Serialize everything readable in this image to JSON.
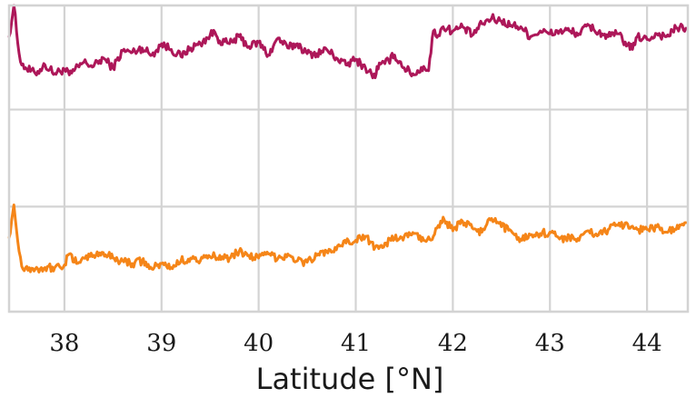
{
  "chart_data": {
    "type": "line",
    "title": "",
    "xlabel": "Latitude [°N]",
    "ylabel": "",
    "xlim": [
      37.43,
      44.42
    ],
    "ylim": [
      0,
      1
    ],
    "x_ticks": [
      38,
      39,
      40,
      41,
      42,
      43,
      44
    ],
    "x_tick_labels": [
      "38",
      "39",
      "40",
      "41",
      "42",
      "43",
      "44"
    ],
    "y_grid": [
      0.0,
      0.343,
      0.66,
      1.0
    ],
    "grid": true,
    "legend": "none",
    "series": [
      {
        "color": "#ad1759",
        "x": [
          37.43,
          37.48,
          37.52,
          37.56,
          37.6,
          37.7,
          37.8,
          37.9,
          38.0,
          38.05,
          38.1,
          38.2,
          38.3,
          38.4,
          38.5,
          38.6,
          38.7,
          38.8,
          38.9,
          39.0,
          39.1,
          39.2,
          39.3,
          39.4,
          39.5,
          39.55,
          39.6,
          39.7,
          39.8,
          39.9,
          40.0,
          40.1,
          40.15,
          40.2,
          40.3,
          40.4,
          40.5,
          40.6,
          40.7,
          40.8,
          40.9,
          41.0,
          41.1,
          41.2,
          41.22,
          41.3,
          41.4,
          41.5,
          41.6,
          41.7,
          41.75,
          41.8,
          41.85,
          41.9,
          42.0,
          42.1,
          42.2,
          42.3,
          42.4,
          42.5,
          42.6,
          42.7,
          42.8,
          42.9,
          43.0,
          43.1,
          43.2,
          43.3,
          43.4,
          43.5,
          43.6,
          43.7,
          43.8,
          43.85,
          43.9,
          44.0,
          44.1,
          44.2,
          44.3,
          44.4
        ],
        "y": [
          0.78,
          1.0,
          0.73,
          0.58,
          0.56,
          0.52,
          0.58,
          0.52,
          0.55,
          0.51,
          0.54,
          0.6,
          0.57,
          0.63,
          0.56,
          0.68,
          0.67,
          0.7,
          0.65,
          0.73,
          0.69,
          0.64,
          0.7,
          0.73,
          0.79,
          0.81,
          0.75,
          0.73,
          0.78,
          0.71,
          0.74,
          0.65,
          0.71,
          0.77,
          0.7,
          0.73,
          0.66,
          0.66,
          0.69,
          0.63,
          0.58,
          0.62,
          0.56,
          0.49,
          0.57,
          0.59,
          0.65,
          0.56,
          0.51,
          0.57,
          0.54,
          0.82,
          0.79,
          0.85,
          0.82,
          0.85,
          0.79,
          0.87,
          0.91,
          0.89,
          0.86,
          0.85,
          0.78,
          0.82,
          0.8,
          0.82,
          0.82,
          0.8,
          0.86,
          0.81,
          0.78,
          0.8,
          0.72,
          0.69,
          0.78,
          0.76,
          0.8,
          0.78,
          0.84,
          0.84
        ]
      },
      {
        "color": "#f58518",
        "x": [
          37.43,
          37.48,
          37.52,
          37.56,
          37.6,
          37.7,
          37.8,
          37.9,
          38.0,
          38.05,
          38.1,
          38.2,
          38.3,
          38.4,
          38.5,
          38.6,
          38.7,
          38.8,
          38.9,
          39.0,
          39.1,
          39.2,
          39.3,
          39.4,
          39.5,
          39.6,
          39.7,
          39.8,
          39.9,
          40.0,
          40.1,
          40.2,
          40.3,
          40.4,
          40.5,
          40.6,
          40.7,
          40.8,
          40.9,
          41.0,
          41.1,
          41.2,
          41.3,
          41.4,
          41.5,
          41.6,
          41.7,
          41.8,
          41.85,
          41.9,
          42.0,
          42.1,
          42.2,
          42.3,
          42.4,
          42.5,
          42.6,
          42.7,
          42.8,
          42.9,
          43.0,
          43.1,
          43.2,
          43.3,
          43.4,
          43.5,
          43.6,
          43.7,
          43.8,
          43.9,
          44.0,
          44.1,
          44.2,
          44.3,
          44.4
        ],
        "y": [
          0.29,
          0.53,
          0.26,
          0.08,
          0.07,
          0.06,
          0.07,
          0.07,
          0.09,
          0.17,
          0.11,
          0.14,
          0.16,
          0.18,
          0.14,
          0.12,
          0.1,
          0.12,
          0.06,
          0.1,
          0.07,
          0.12,
          0.14,
          0.12,
          0.15,
          0.16,
          0.14,
          0.19,
          0.16,
          0.14,
          0.17,
          0.14,
          0.17,
          0.12,
          0.11,
          0.16,
          0.19,
          0.2,
          0.25,
          0.27,
          0.3,
          0.22,
          0.25,
          0.28,
          0.3,
          0.32,
          0.27,
          0.3,
          0.38,
          0.44,
          0.34,
          0.41,
          0.36,
          0.33,
          0.43,
          0.37,
          0.34,
          0.28,
          0.31,
          0.32,
          0.33,
          0.28,
          0.3,
          0.27,
          0.34,
          0.31,
          0.35,
          0.38,
          0.39,
          0.35,
          0.35,
          0.37,
          0.33,
          0.35,
          0.4
        ]
      }
    ]
  }
}
